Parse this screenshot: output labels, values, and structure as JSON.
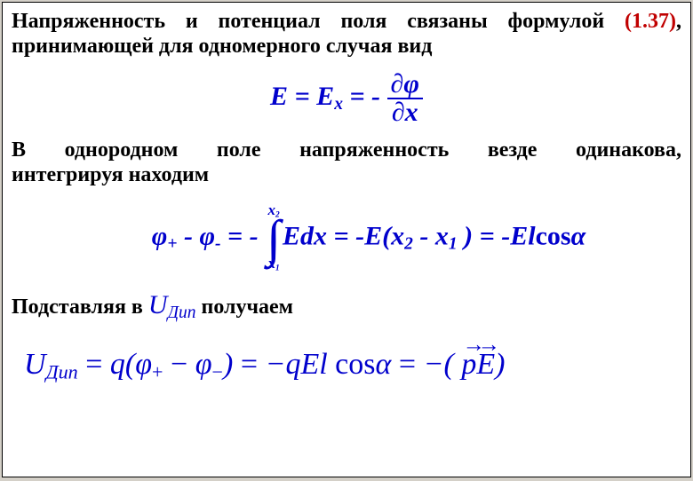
{
  "para1": {
    "part1": "Напряженность и потенциал поля связаны формулой ",
    "ref": "(1.37)",
    "part2": ", принимающей для одномерного случая вид"
  },
  "formula1": {
    "E": "E",
    "eq1": " = ",
    "Ex_E": "E",
    "Ex_sub": "x",
    "eq2": " = ",
    "neg": "- ",
    "num_d": "∂",
    "num_phi": "φ",
    "den_d": "∂",
    "den_x": "x"
  },
  "para2": {
    "line1_w1": "В",
    "line1_w2": "однородном",
    "line1_w3": "поле",
    "line1_w4": "напряженность",
    "line1_w5": "везде",
    "line1_w6": "одинакова,",
    "line2": "интегрируя находим"
  },
  "formula2": {
    "phi_p": "φ",
    "plus_sub": "+",
    "minus1": " - ",
    "phi_m": "φ",
    "minus_sub": "-",
    "eq1": " = ",
    "neg1": "- ",
    "int_top_x": "x",
    "int_top_2": "2",
    "int_bot_x": "x",
    "int_bot_1": "1",
    "Edx": "Edx",
    "eq2": " = ",
    "neg_E_open": "-E(x",
    "sub2": "2",
    "minus2": " - x",
    "sub1": "1",
    "close": " )",
    "eq3": " = ",
    "neg_El": "-El",
    "cos": "cos",
    "alpha": "α"
  },
  "para3": {
    "part1": "Подставляя в ",
    "U": "U",
    "U_sub": "Дип",
    "part2": " получаем"
  },
  "formula3": {
    "U": "U",
    "U_sub": "Дип",
    "eq1": " = ",
    "q_open": "q(",
    "phi_p": "φ",
    "plus_sub": "+",
    "minus": " − ",
    "phi_m": "φ",
    "minus_sub": "−",
    "close1": ")",
    "eq2": " = ",
    "neg_qEl": "−qEl ",
    "cos": "cos",
    "alpha": "α",
    "eq3": " = ",
    "neg_open": "−( ",
    "p_vec": "p",
    "E_vec": "E",
    "close2": ")"
  },
  "colors": {
    "text": "#000000",
    "formula": "#0000cc",
    "reference": "#c00000",
    "background": "#ffffff"
  }
}
